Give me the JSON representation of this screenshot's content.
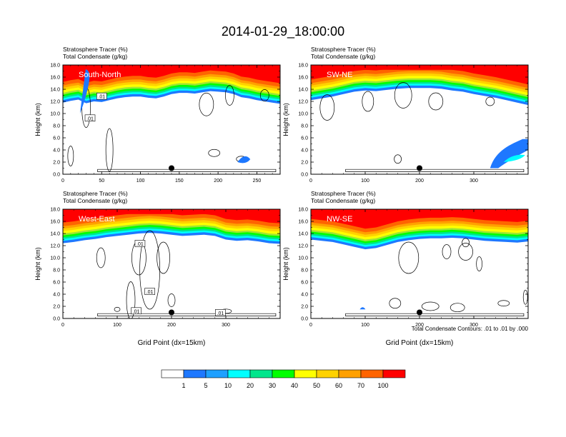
{
  "figure": {
    "title": "2014-01-29_18:00:00",
    "contour_note": "Total Condensate Contours: .01 to .01 by .000",
    "x_axis_label": "Grid Point (dx=15km)"
  },
  "chart_data": [
    {
      "type": "heatmap",
      "title_lines": [
        "Stratosphere Tracer   (%)",
        "Total Condensate   (g/kg)"
      ],
      "panel_label": "South-North",
      "ylabel": "Height (km)",
      "ylim": [
        0,
        18
      ],
      "yticks": [
        "0.0",
        "2.0",
        "4.0",
        "6.0",
        "8.0",
        "10.0",
        "12.0",
        "14.0",
        "16.0",
        "18.0"
      ],
      "xlim": [
        0,
        280
      ],
      "xticks": [
        0,
        50,
        100,
        150,
        200,
        250
      ],
      "xlabel": "",
      "marker": {
        "x": 140,
        "y": 1.0
      },
      "contour_labels": [
        {
          "text": ".01",
          "x": 50,
          "y": 12.8
        },
        {
          "text": ".01",
          "x": 35,
          "y": 9.2
        }
      ],
      "tracer_profile": [
        [
          0,
          13.6
        ],
        [
          10,
          13.9
        ],
        [
          20,
          14.1
        ],
        [
          30,
          13.5
        ],
        [
          40,
          13.8
        ],
        [
          50,
          13.7
        ],
        [
          60,
          14.0
        ],
        [
          70,
          14.3
        ],
        [
          80,
          14.5
        ],
        [
          90,
          14.6
        ],
        [
          100,
          14.6
        ],
        [
          110,
          14.4
        ],
        [
          120,
          14.3
        ],
        [
          130,
          14.6
        ],
        [
          140,
          15.0
        ],
        [
          150,
          15.2
        ],
        [
          160,
          15.2
        ],
        [
          170,
          15.1
        ],
        [
          180,
          15.3
        ],
        [
          190,
          15.5
        ],
        [
          200,
          15.4
        ],
        [
          210,
          15.3
        ],
        [
          220,
          15.0
        ],
        [
          230,
          14.5
        ],
        [
          240,
          14.3
        ],
        [
          250,
          14.0
        ],
        [
          260,
          13.8
        ],
        [
          270,
          13.6
        ],
        [
          280,
          13.4
        ]
      ]
    },
    {
      "type": "heatmap",
      "title_lines": [
        "Stratosphere Tracer   (%)",
        "Total Condensate   (g/kg)"
      ],
      "panel_label": "SW-NE",
      "ylabel": "Height (km)",
      "ylim": [
        0,
        18
      ],
      "yticks": [
        "0.0",
        "2.0",
        "4.0",
        "6.0",
        "8.0",
        "10.0",
        "12.0",
        "14.0",
        "16.0",
        "18.0"
      ],
      "xlim": [
        0,
        400
      ],
      "xticks": [
        0,
        100,
        200,
        300
      ],
      "xlabel": "",
      "marker": {
        "x": 200,
        "y": 1.0
      },
      "contour_labels": [],
      "tracer_profile": [
        [
          0,
          14.0
        ],
        [
          20,
          14.3
        ],
        [
          40,
          14.6
        ],
        [
          60,
          15.0
        ],
        [
          80,
          15.4
        ],
        [
          100,
          15.6
        ],
        [
          120,
          15.5
        ],
        [
          140,
          15.7
        ],
        [
          160,
          15.9
        ],
        [
          180,
          16.0
        ],
        [
          200,
          16.0
        ],
        [
          220,
          16.0
        ],
        [
          240,
          15.9
        ],
        [
          260,
          15.6
        ],
        [
          280,
          15.4
        ],
        [
          300,
          15.0
        ],
        [
          320,
          14.7
        ],
        [
          340,
          14.4
        ],
        [
          360,
          14.0
        ],
        [
          380,
          13.6
        ],
        [
          400,
          13.2
        ]
      ]
    },
    {
      "type": "heatmap",
      "title_lines": [
        "Stratosphere Tracer   (%)",
        "Total Condensate   (g/kg)"
      ],
      "panel_label": "West-East",
      "ylabel": "Height (km)",
      "ylim": [
        0,
        18
      ],
      "yticks": [
        "0.0",
        "2.0",
        "4.0",
        "6.0",
        "8.0",
        "10.0",
        "12.0",
        "14.0",
        "16.0",
        "18.0"
      ],
      "xlim": [
        0,
        400
      ],
      "xticks": [
        0,
        100,
        200,
        300
      ],
      "xlabel": "Grid Point (dx=15km)",
      "marker": {
        "x": 200,
        "y": 1.0
      },
      "contour_labels": [
        {
          "text": ".01",
          "x": 142,
          "y": 12.3
        },
        {
          "text": ".01",
          "x": 160,
          "y": 4.4
        },
        {
          "text": ".01",
          "x": 135,
          "y": 1.2
        },
        {
          "text": ".01",
          "x": 290,
          "y": 0.9
        }
      ],
      "tracer_profile": [
        [
          0,
          14.2
        ],
        [
          20,
          14.4
        ],
        [
          40,
          14.7
        ],
        [
          60,
          14.9
        ],
        [
          80,
          15.2
        ],
        [
          100,
          15.4
        ],
        [
          120,
          15.6
        ],
        [
          140,
          15.8
        ],
        [
          160,
          15.9
        ],
        [
          180,
          15.8
        ],
        [
          200,
          15.6
        ],
        [
          220,
          15.4
        ],
        [
          240,
          15.5
        ],
        [
          260,
          15.6
        ],
        [
          280,
          15.4
        ],
        [
          300,
          14.8
        ],
        [
          320,
          14.6
        ],
        [
          340,
          14.7
        ],
        [
          360,
          14.5
        ],
        [
          380,
          14.2
        ],
        [
          400,
          14.1
        ]
      ]
    },
    {
      "type": "heatmap",
      "title_lines": [
        "Stratosphere Tracer   (%)",
        "Total Condensate   (g/kg)"
      ],
      "panel_label": "NW-SE",
      "ylabel": "Height (km)",
      "ylim": [
        0,
        18
      ],
      "yticks": [
        "0.0",
        "2.0",
        "4.0",
        "6.0",
        "8.0",
        "10.0",
        "12.0",
        "14.0",
        "16.0",
        "18.0"
      ],
      "xlim": [
        0,
        400
      ],
      "xticks": [
        0,
        100,
        200,
        300
      ],
      "xlabel": "Grid Point (dx=15km)",
      "marker": {
        "x": 200,
        "y": 1.0
      },
      "contour_labels": [],
      "tracer_profile": [
        [
          0,
          14.8
        ],
        [
          20,
          14.6
        ],
        [
          40,
          14.4
        ],
        [
          60,
          14.0
        ],
        [
          80,
          13.6
        ],
        [
          100,
          13.2
        ],
        [
          120,
          13.4
        ],
        [
          140,
          13.9
        ],
        [
          160,
          14.4
        ],
        [
          180,
          14.7
        ],
        [
          200,
          14.9
        ],
        [
          220,
          15.0
        ],
        [
          240,
          15.0
        ],
        [
          260,
          15.1
        ],
        [
          280,
          15.0
        ],
        [
          300,
          14.8
        ],
        [
          320,
          14.6
        ],
        [
          340,
          14.5
        ],
        [
          360,
          14.4
        ],
        [
          380,
          14.3
        ],
        [
          400,
          14.5
        ]
      ]
    }
  ],
  "colorbar": {
    "levels": [
      "1",
      "5",
      "10",
      "20",
      "30",
      "40",
      "50",
      "60",
      "70",
      "100"
    ],
    "colors": [
      "#ffffff",
      "#1e78ff",
      "#1ea0ff",
      "#00ffff",
      "#00e68c",
      "#00ff00",
      "#a0e632",
      "#ffff00",
      "#ffd200",
      "#ffa000",
      "#ff6400",
      "#ff0000"
    ]
  }
}
